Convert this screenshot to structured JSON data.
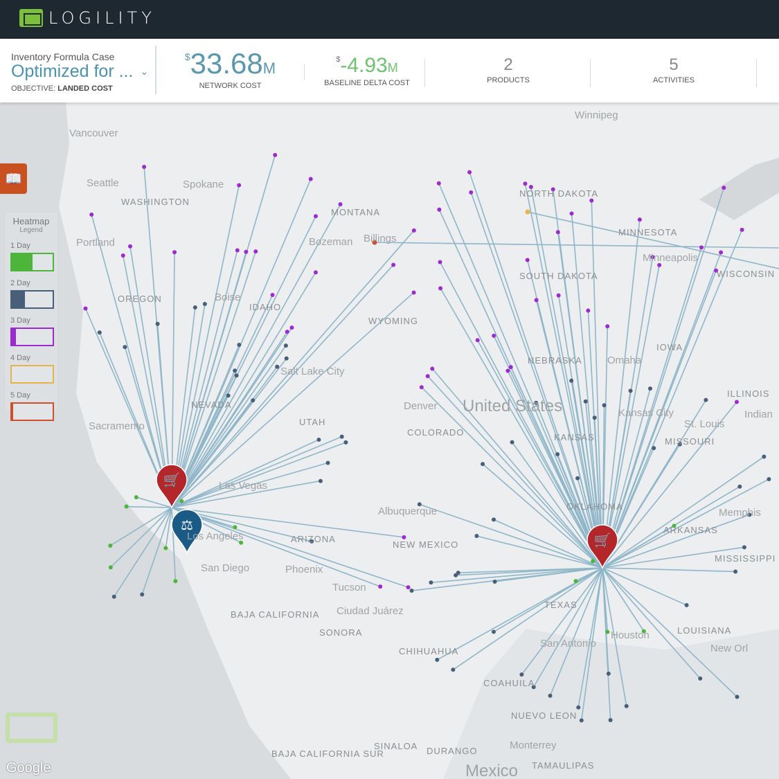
{
  "brand": {
    "name": "LOGILITY"
  },
  "case": {
    "subtitle": "Inventory Formula Case",
    "title": "Optimized for ...",
    "objective_label": "OBJECTIVE:",
    "objective_value": "LANDED COST"
  },
  "kpis": {
    "network_cost": {
      "currency": "$",
      "value": "33.68",
      "unit": "M",
      "label": "NETWORK COST"
    },
    "baseline_delta": {
      "currency": "$",
      "value": "-4.93",
      "unit": "M",
      "label": "BASELINE DELTA COST"
    },
    "products": {
      "value": "2",
      "label": "PRODUCTS"
    },
    "activities": {
      "value": "5",
      "label": "ACTIVITIES"
    }
  },
  "colors": {
    "accent": "#5b98ad",
    "delta": "#6cc36b",
    "header": "#1e2830",
    "flow": "#8fb6c9",
    "one_day": "#4cb53a",
    "two_day": "#485f7a",
    "three_day": "#9b2bd1",
    "four_day": "#e8b24d",
    "five_day": "#cf4f2a",
    "warehouse_pin": "#b3262a",
    "plant_pin": "#1a5a86"
  },
  "legend": {
    "title": "Heatmap",
    "subtitle": "Legend",
    "icon": "book-reader-icon",
    "items": [
      {
        "label": "1 Day",
        "color": "#4cb53a",
        "fill": 0.5
      },
      {
        "label": "2 Day",
        "color": "#485f7a",
        "fill": 0.33
      },
      {
        "label": "3 Day",
        "color": "#9b2bd1",
        "fill": 0.1
      },
      {
        "label": "4 Day",
        "color": "#e8b24d",
        "fill": 0
      },
      {
        "label": "5 Day",
        "color": "#cf4f2a",
        "fill": 0.03
      }
    ]
  },
  "map": {
    "states": [
      "WASHINGTON",
      "OREGON",
      "IDAHO",
      "MONTANA",
      "WYOMING",
      "NORTH DAKOTA",
      "SOUTH DAKOTA",
      "NEBRASKA",
      "MINNESOTA",
      "IOWA",
      "WISCONSIN",
      "ILLINOIS",
      "KANSAS",
      "MISSOURI",
      "COLORADO",
      "UTAH",
      "NEVADA",
      "ARIZONA",
      "NEW MEXICO",
      "OKLAHOMA",
      "ARKANSAS",
      "MISSISSIPPI",
      "LOUISIANA",
      "TEXAS",
      "BAJA CALIFORNIA",
      "SONORA",
      "CHIHUAHUA",
      "COAHUILA",
      "NUEVO LEON",
      "SINALOA",
      "DURANGO",
      "TAMAULIPAS",
      "BAJA CALIFORNIA SUR"
    ],
    "cities": [
      "Winnipeg",
      "Vancouver",
      "Seattle",
      "Spokane",
      "Portland",
      "Boise",
      "Bozeman",
      "Billings",
      "Minneapolis",
      "Omaha",
      "Salt Lake City",
      "Denver",
      "Kansas City",
      "St. Louis",
      "Indian",
      "Sacramento",
      "Las Vegas",
      "Los Angeles",
      "San Diego",
      "Phoenix",
      "Tucson",
      "Albuquerque",
      "Ciudad Juárez",
      "Memphis",
      "San Antonio",
      "Houston",
      "New Orl",
      "Monterrey"
    ],
    "countries": [
      "United States",
      "Mexico"
    ],
    "attribution": "Google"
  }
}
